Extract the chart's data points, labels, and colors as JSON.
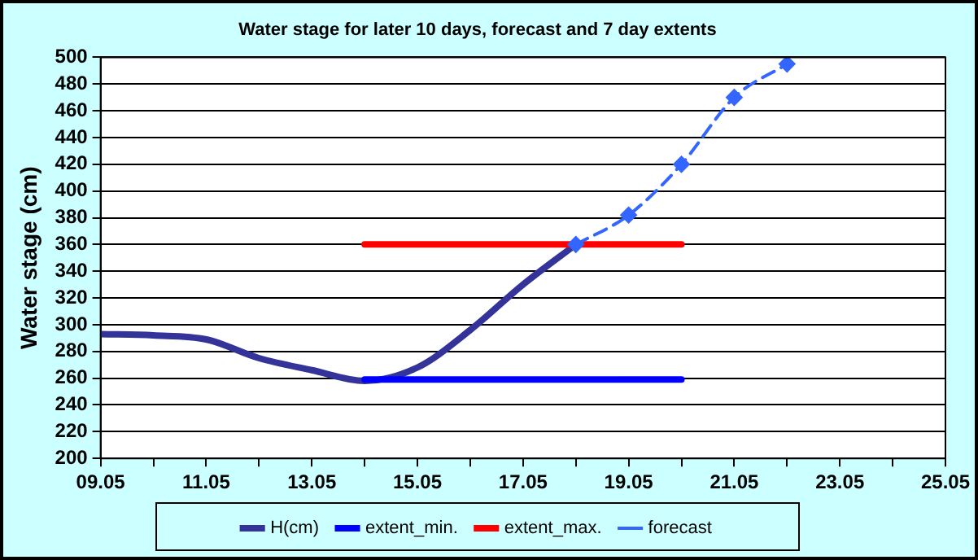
{
  "chart_data": {
    "type": "line",
    "title": "Water stage for later 10 days, forecast and 7 day extents",
    "ylabel": "Water stage (cm)",
    "xlim": [
      "--05-09",
      "--05-25"
    ],
    "xticks": [
      {
        "value": "--05-09",
        "label": "09.05"
      },
      {
        "value": "--05-10",
        "label": null
      },
      {
        "value": "--05-11",
        "label": "11.05"
      },
      {
        "value": "--05-12",
        "label": null
      },
      {
        "value": "--05-13",
        "label": "13.05"
      },
      {
        "value": "--05-14",
        "label": null
      },
      {
        "value": "--05-15",
        "label": "15.05"
      },
      {
        "value": "--05-16",
        "label": null
      },
      {
        "value": "--05-17",
        "label": "17.05"
      },
      {
        "value": "--05-18",
        "label": null
      },
      {
        "value": "--05-19",
        "label": "19.05"
      },
      {
        "value": "--05-20",
        "label": null
      },
      {
        "value": "--05-21",
        "label": "21.05"
      },
      {
        "value": "--05-22",
        "label": null
      },
      {
        "value": "--05-23",
        "label": "23.05"
      },
      {
        "value": "--05-24",
        "label": null
      },
      {
        "value": "--05-25",
        "label": "25.05"
      }
    ],
    "ylim": [
      200,
      500
    ],
    "yticks": [
      200,
      220,
      240,
      260,
      280,
      300,
      320,
      340,
      360,
      380,
      400,
      420,
      440,
      460,
      480,
      500
    ],
    "grid": "y",
    "legend": "bottom",
    "series": [
      {
        "name": "H(cm)",
        "color": "#333399",
        "x": [
          "--05-09",
          "--05-10",
          "--05-11",
          "--05-12",
          "--05-13",
          "--05-14",
          "--05-15",
          "--05-16",
          "--05-17",
          "--05-18"
        ],
        "values": [
          293,
          292,
          289,
          275,
          266,
          258,
          268,
          296,
          330,
          360
        ],
        "marker": "none",
        "line_style": "solid"
      },
      {
        "name": "extent_min.",
        "color": "#0000ff",
        "x": [
          "--05-14",
          "--05-20"
        ],
        "values": [
          259,
          259
        ],
        "marker": "none",
        "line_style": "solid"
      },
      {
        "name": "extent_max.",
        "color": "#ff0000",
        "x": [
          "--05-14",
          "--05-20"
        ],
        "values": [
          360,
          360
        ],
        "marker": "none",
        "line_style": "solid"
      },
      {
        "name": "forecast",
        "color": "#3366ff",
        "x": [
          "--05-18",
          "--05-19",
          "--05-20",
          "--05-21",
          "--05-22"
        ],
        "values": [
          360,
          382,
          420,
          470,
          495
        ],
        "marker": "diamond",
        "line_style": "dashed"
      }
    ]
  }
}
